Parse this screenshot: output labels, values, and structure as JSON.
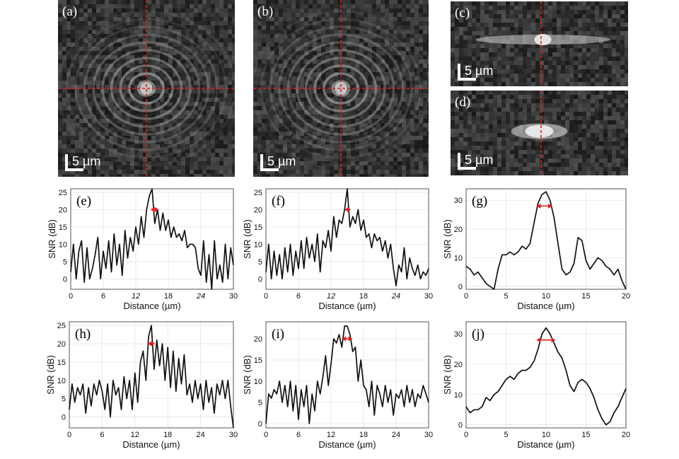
{
  "image_panels": [
    {
      "id": "a",
      "label": "(a)",
      "scale_label": "5 µm",
      "kind": "rings"
    },
    {
      "id": "b",
      "label": "(b)",
      "scale_label": "5 µm",
      "kind": "rings"
    },
    {
      "id": "c",
      "label": "(c)",
      "scale_label": "5 µm",
      "kind": "streak"
    },
    {
      "id": "d",
      "label": "(d)",
      "scale_label": "5 µm",
      "kind": "blob"
    }
  ],
  "colors": {
    "crosshair": "#e02020",
    "fwhm_marker": "#e02020",
    "line": "#111111",
    "grid": "#dddddd"
  },
  "chart_data": [
    {
      "id": "e",
      "label": "(e)",
      "type": "line",
      "xlabel": "Distance (µm)",
      "ylabel": "SNR (dB)",
      "xlim": [
        0,
        30
      ],
      "ylim": [
        -3,
        26
      ],
      "xticks": [
        0,
        6,
        12,
        18,
        24,
        30
      ],
      "yticks": [
        0,
        5,
        10,
        15,
        20,
        25
      ],
      "italic_ticks": [
        12,
        24
      ],
      "fwhm": [
        14.7,
        16.3,
        20
      ],
      "x": [
        0,
        0.5,
        1,
        1.5,
        2,
        2.5,
        3,
        3.5,
        4,
        4.5,
        5,
        5.5,
        6,
        6.5,
        7,
        7.5,
        8,
        8.5,
        9,
        9.5,
        10,
        10.5,
        11,
        11.5,
        12,
        12.5,
        13,
        13.5,
        14,
        14.5,
        15,
        15.5,
        16,
        16.5,
        17,
        17.5,
        18,
        18.5,
        19,
        19.5,
        20,
        20.5,
        21,
        21.5,
        22,
        22.5,
        23,
        23.5,
        24,
        24.5,
        25,
        25.5,
        26,
        26.5,
        27,
        27.5,
        28,
        28.5,
        29,
        29.5,
        30
      ],
      "y": [
        2,
        10,
        0,
        8,
        11,
        -1,
        9,
        0,
        3,
        7,
        12,
        0,
        8,
        3,
        11,
        2,
        13,
        4,
        10,
        1,
        14,
        6,
        12,
        8,
        15,
        10,
        18,
        12,
        20,
        24,
        26,
        16,
        20,
        14,
        19,
        14,
        17,
        12,
        15,
        12,
        13,
        11,
        14,
        9,
        10,
        10,
        9,
        3,
        1,
        11,
        -1,
        7,
        -3,
        11,
        0,
        4,
        -1,
        10,
        0,
        9,
        4
      ]
    },
    {
      "id": "f",
      "label": "(f)",
      "type": "line",
      "xlabel": "Distance (µm)",
      "ylabel": "SNR (dB)",
      "xlim": [
        0,
        30
      ],
      "ylim": [
        -3,
        26
      ],
      "xticks": [
        0,
        6,
        12,
        18,
        24,
        30
      ],
      "yticks": [
        0,
        5,
        10,
        15,
        20,
        25
      ],
      "italic_ticks": [
        12,
        24
      ],
      "fwhm": [
        14.5,
        15.7,
        20
      ],
      "x": [
        0,
        0.5,
        1,
        1.5,
        2,
        2.5,
        3,
        3.5,
        4,
        4.5,
        5,
        5.5,
        6,
        6.5,
        7,
        7.5,
        8,
        8.5,
        9,
        9.5,
        10,
        10.5,
        11,
        11.5,
        12,
        12.5,
        13,
        13.5,
        14,
        14.5,
        15,
        15.5,
        16,
        16.5,
        17,
        17.5,
        18,
        18.5,
        19,
        19.5,
        20,
        20.5,
        21,
        21.5,
        22,
        22.5,
        23,
        23.5,
        24,
        24.5,
        25,
        25.5,
        26,
        26.5,
        27,
        27.5,
        28,
        28.5,
        29,
        29.5,
        30
      ],
      "y": [
        2,
        10,
        0,
        8,
        1,
        7,
        0,
        9,
        2,
        10,
        1,
        8,
        3,
        11,
        3,
        12,
        6,
        10,
        5,
        13,
        2,
        11,
        9,
        14,
        8,
        18,
        12,
        17,
        16,
        20,
        26,
        15,
        18,
        16,
        20,
        14,
        17,
        12,
        13,
        9,
        13,
        11,
        12,
        8,
        11,
        6,
        10,
        3,
        -2,
        4,
        2,
        9,
        0,
        6,
        3,
        1,
        4,
        0,
        2,
        1,
        3
      ]
    },
    {
      "id": "g",
      "label": "(g)",
      "type": "line",
      "xlabel": "Distance (µm)",
      "ylabel": "SNR (dB)",
      "xlim": [
        0,
        20
      ],
      "ylim": [
        -1,
        34
      ],
      "xticks": [
        0,
        5,
        10,
        15,
        20
      ],
      "yticks": [
        0,
        10,
        20,
        30
      ],
      "italic_ticks": [],
      "fwhm": [
        8.8,
        10.8,
        28
      ],
      "x": [
        0,
        0.5,
        1,
        1.5,
        2,
        2.5,
        3,
        3.5,
        4,
        4.5,
        5,
        5.5,
        6,
        6.5,
        7,
        7.5,
        8,
        8.5,
        9,
        9.5,
        10,
        10.5,
        11,
        11.5,
        12,
        12.5,
        13,
        13.5,
        14,
        14.5,
        15,
        15.5,
        16,
        16.5,
        17,
        17.5,
        18,
        18.5,
        19,
        19.5,
        20
      ],
      "y": [
        7,
        6,
        4,
        5,
        3,
        1,
        0,
        -1,
        6,
        11,
        11,
        12,
        11,
        12,
        14,
        13,
        15,
        22,
        29,
        32,
        33,
        30,
        24,
        15,
        6,
        4,
        5,
        8,
        17,
        16,
        9,
        6,
        8,
        10,
        9,
        7,
        6,
        4,
        6,
        2,
        -1
      ]
    },
    {
      "id": "h",
      "label": "(h)",
      "type": "line",
      "xlabel": "Distance (µm)",
      "ylabel": "SNR (dB)",
      "xlim": [
        0,
        30
      ],
      "ylim": [
        -3,
        26
      ],
      "xticks": [
        0,
        6,
        12,
        18,
        24,
        30
      ],
      "yticks": [
        0,
        5,
        10,
        15,
        20,
        25
      ],
      "italic_ticks": [],
      "fwhm": [
        14.3,
        15.7,
        20
      ],
      "x": [
        0,
        0.5,
        1,
        1.5,
        2,
        2.5,
        3,
        3.5,
        4,
        4.5,
        5,
        5.5,
        6,
        6.5,
        7,
        7.5,
        8,
        8.5,
        9,
        9.5,
        10,
        10.5,
        11,
        11.5,
        12,
        12.5,
        13,
        13.5,
        14,
        14.5,
        15,
        15.5,
        16,
        16.5,
        17,
        17.5,
        18,
        18.5,
        19,
        19.5,
        20,
        20.5,
        21,
        21.5,
        22,
        22.5,
        23,
        23.5,
        24,
        24.5,
        25,
        25.5,
        26,
        26.5,
        27,
        27.5,
        28,
        28.5,
        29,
        29.5,
        30
      ],
      "y": [
        2,
        9,
        4,
        8,
        6,
        9,
        1,
        8,
        3,
        9,
        6,
        10,
        7,
        2,
        9,
        0,
        10,
        6,
        8,
        2,
        11,
        5,
        10,
        2,
        12,
        4,
        15,
        18,
        10,
        22,
        25,
        13,
        21,
        14,
        20,
        10,
        19,
        8,
        18,
        7,
        16,
        9,
        17,
        6,
        9,
        4,
        10,
        5,
        9,
        2,
        10,
        4,
        8,
        1,
        9,
        6,
        10,
        5,
        10,
        3,
        -3
      ]
    },
    {
      "id": "i",
      "label": "(i)",
      "type": "line",
      "xlabel": "Distance (µm)",
      "ylabel": "SNR (dB)",
      "xlim": [
        0,
        30
      ],
      "ylim": [
        -1,
        24
      ],
      "xticks": [
        0,
        6,
        12,
        18,
        24,
        30
      ],
      "yticks": [
        0,
        5,
        10,
        15,
        20
      ],
      "italic_ticks": [],
      "fwhm": [
        14,
        16,
        20
      ],
      "x": [
        0,
        0.5,
        1,
        1.5,
        2,
        2.5,
        3,
        3.5,
        4,
        4.5,
        5,
        5.5,
        6,
        6.5,
        7,
        7.5,
        8,
        8.5,
        9,
        9.5,
        10,
        10.5,
        11,
        11.5,
        12,
        12.5,
        13,
        13.5,
        14,
        14.5,
        15,
        15.5,
        16,
        16.5,
        17,
        17.5,
        18,
        18.5,
        19,
        19.5,
        20,
        20.5,
        21,
        21.5,
        22,
        22.5,
        23,
        23.5,
        24,
        24.5,
        25,
        25.5,
        26,
        26.5,
        27,
        27.5,
        28,
        28.5,
        29,
        29.5,
        30
      ],
      "y": [
        0,
        7,
        6,
        8,
        7,
        10,
        5,
        9,
        4,
        10,
        3,
        9,
        1,
        8,
        4,
        9,
        0,
        7,
        3,
        10,
        7,
        11,
        16,
        9,
        14,
        20,
        19,
        21,
        18,
        23,
        23,
        21,
        17,
        18,
        10,
        15,
        9,
        8,
        4,
        10,
        2,
        9,
        7,
        4,
        9,
        5,
        8,
        2,
        7,
        6,
        8,
        4,
        9,
        5,
        8,
        4,
        7,
        6,
        9,
        7,
        5
      ]
    },
    {
      "id": "j",
      "label": "(j)",
      "type": "line",
      "xlabel": "Distance (µm)",
      "ylabel": "SNR (dB)",
      "xlim": [
        0,
        20
      ],
      "ylim": [
        -1,
        34
      ],
      "xticks": [
        0,
        5,
        10,
        15,
        20
      ],
      "yticks": [
        0,
        10,
        20,
        30
      ],
      "italic_ticks": [],
      "fwhm": [
        8.8,
        11.2,
        28
      ],
      "x": [
        0,
        0.5,
        1,
        1.5,
        2,
        2.5,
        3,
        3.5,
        4,
        4.5,
        5,
        5.5,
        6,
        6.5,
        7,
        7.5,
        8,
        8.5,
        9,
        9.5,
        10,
        10.5,
        11,
        11.5,
        12,
        12.5,
        13,
        13.5,
        14,
        14.5,
        15,
        15.5,
        16,
        16.5,
        17,
        17.5,
        18,
        18.5,
        19,
        19.5,
        20
      ],
      "y": [
        6,
        4,
        5,
        5,
        6,
        9,
        8,
        10,
        11,
        13,
        15,
        16,
        15,
        17,
        18,
        18,
        19,
        21,
        25,
        30,
        32,
        30,
        27,
        24,
        22,
        18,
        13,
        11,
        14,
        15,
        14,
        12,
        9,
        5,
        2,
        0,
        1,
        4,
        6,
        9,
        12
      ]
    }
  ]
}
